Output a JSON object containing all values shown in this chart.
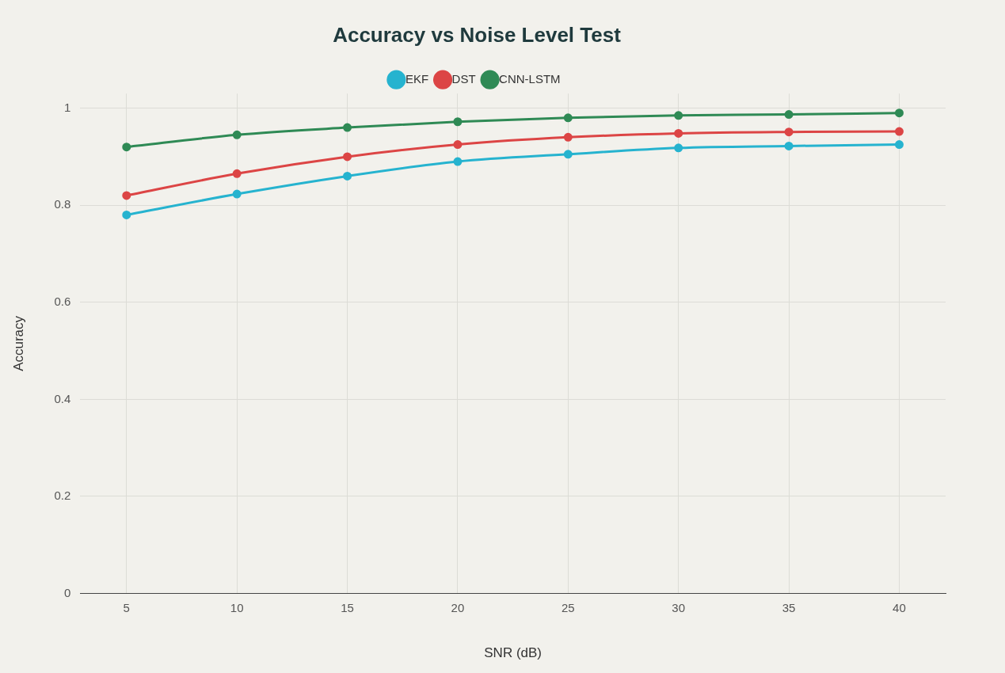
{
  "chart_data": {
    "type": "line",
    "title": "Accuracy vs Noise Level Test",
    "xlabel": "SNR (dB)",
    "ylabel": "Accuracy",
    "x": [
      5,
      10,
      15,
      20,
      25,
      30,
      35,
      40
    ],
    "series": [
      {
        "name": "EKF",
        "color": "#26b3cf",
        "values": [
          0.78,
          0.823,
          0.86,
          0.89,
          0.905,
          0.918,
          0.922,
          0.925
        ]
      },
      {
        "name": "DST",
        "color": "#dc4545",
        "values": [
          0.82,
          0.865,
          0.9,
          0.925,
          0.94,
          0.948,
          0.951,
          0.952
        ]
      },
      {
        "name": "CNN-LSTM",
        "color": "#2f8a55",
        "values": [
          0.92,
          0.945,
          0.96,
          0.972,
          0.98,
          0.985,
          0.987,
          0.99
        ]
      }
    ],
    "xlim": [
      2.9,
      42.1
    ],
    "xticks": [
      5,
      10,
      15,
      20,
      25,
      30,
      35,
      40
    ],
    "ylim": [
      0,
      1.03
    ],
    "yticks": [
      0,
      0.2,
      0.4,
      0.6,
      0.8,
      1
    ],
    "grid": true,
    "legend": "top",
    "marker": "circle",
    "line_style": "solid"
  }
}
